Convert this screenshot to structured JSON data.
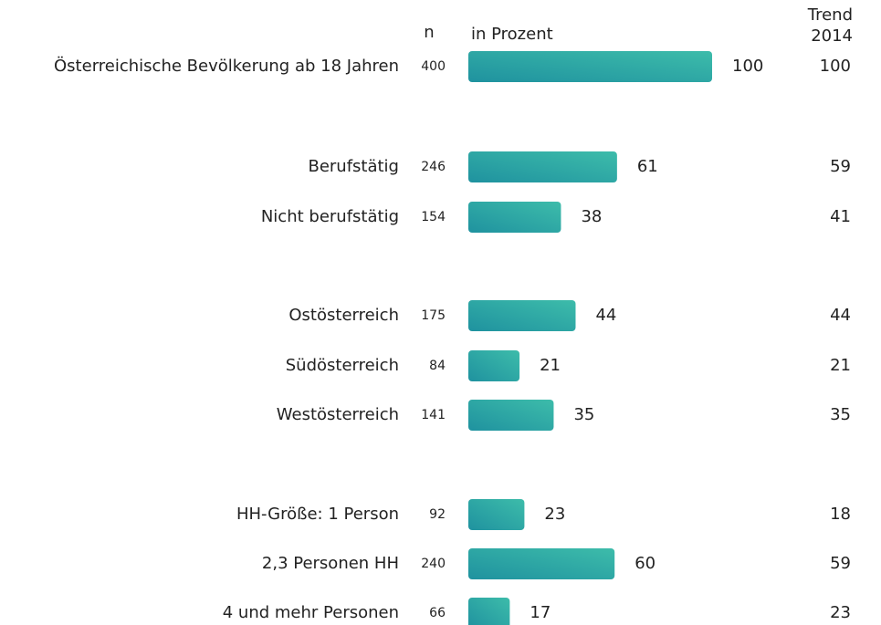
{
  "chart_data": {
    "type": "bar",
    "n_header": "n",
    "trend_header": [
      "Trend",
      "2014"
    ],
    "categories": [
      "Österreichische Bevölkerung ab 18 Jahren",
      "Berufstätig",
      "Nicht berufstätig",
      "Ostösterreich",
      "Südösterreich",
      "Westösterreich",
      "HH-Größe: 1 Person",
      "2,3 Personen HH",
      "4 und mehr Personen"
    ],
    "n": [
      400,
      246,
      154,
      175,
      84,
      141,
      92,
      240,
      66
    ],
    "series": [
      {
        "name": "in Prozent",
        "color": [
          "#1f929f",
          "#3dbcaa"
        ],
        "values": [
          100,
          61,
          38,
          44,
          21,
          35,
          23,
          60,
          17
        ]
      }
    ],
    "trend": [
      100,
      59,
      41,
      44,
      21,
      35,
      18,
      59,
      23
    ],
    "xlim": [
      0,
      100
    ]
  }
}
